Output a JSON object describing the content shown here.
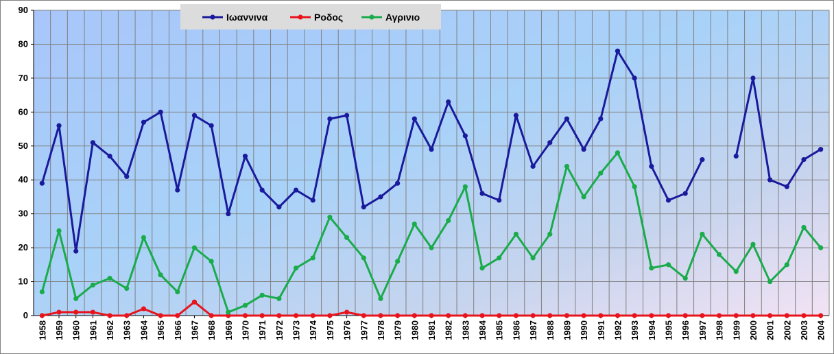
{
  "chart_data": {
    "type": "line",
    "title": "",
    "xlabel": "",
    "ylabel": "",
    "ylim": [
      0,
      90
    ],
    "yticks": [
      0,
      10,
      20,
      30,
      40,
      50,
      60,
      70,
      80,
      90
    ],
    "grid": true,
    "legend_position": "top",
    "categories": [
      "1958",
      "1959",
      "1960",
      "1961",
      "1962",
      "1963",
      "1964",
      "1965",
      "1966",
      "1967",
      "1968",
      "1969",
      "1970",
      "1971",
      "1972",
      "1973",
      "1974",
      "1975",
      "1976",
      "1977",
      "1978",
      "1979",
      "1980",
      "1981",
      "1982",
      "1983",
      "1984",
      "1985",
      "1986",
      "1987",
      "1988",
      "1989",
      "1990",
      "1991",
      "1992",
      "1993",
      "1994",
      "1995",
      "1996",
      "1997",
      "1998",
      "1999",
      "2000",
      "2001",
      "2002",
      "2003",
      "2004"
    ],
    "series": [
      {
        "name": "Ιωαννινα",
        "color": "#1a1a9c",
        "values": [
          39,
          56,
          19,
          51,
          47,
          41,
          57,
          60,
          37,
          59,
          56,
          30,
          47,
          37,
          32,
          37,
          34,
          58,
          59,
          32,
          35,
          39,
          58,
          49,
          63,
          53,
          36,
          34,
          59,
          44,
          51,
          58,
          49,
          58,
          78,
          70,
          44,
          34,
          36,
          46,
          null,
          47,
          70,
          40,
          38,
          46,
          49
        ]
      },
      {
        "name": "Ροδος",
        "color": "#e8141c",
        "values": [
          0,
          1,
          1,
          1,
          0,
          0,
          2,
          0,
          0,
          4,
          0,
          0,
          0,
          0,
          0,
          0,
          0,
          0,
          1,
          0,
          0,
          0,
          0,
          0,
          0,
          0,
          0,
          0,
          0,
          0,
          0,
          0,
          0,
          0,
          0,
          0,
          0,
          0,
          0,
          0,
          0,
          0,
          0,
          0,
          0,
          0,
          0
        ]
      },
      {
        "name": "Αγρινιο",
        "color": "#1aab4b",
        "values": [
          7,
          25,
          5,
          9,
          11,
          8,
          23,
          12,
          7,
          20,
          16,
          1,
          3,
          6,
          5,
          14,
          17,
          29,
          23,
          17,
          5,
          16,
          27,
          20,
          28,
          38,
          14,
          17,
          24,
          17,
          24,
          44,
          35,
          42,
          48,
          38,
          14,
          15,
          11,
          24,
          18,
          13,
          21,
          10,
          15,
          26,
          20
        ]
      }
    ]
  }
}
